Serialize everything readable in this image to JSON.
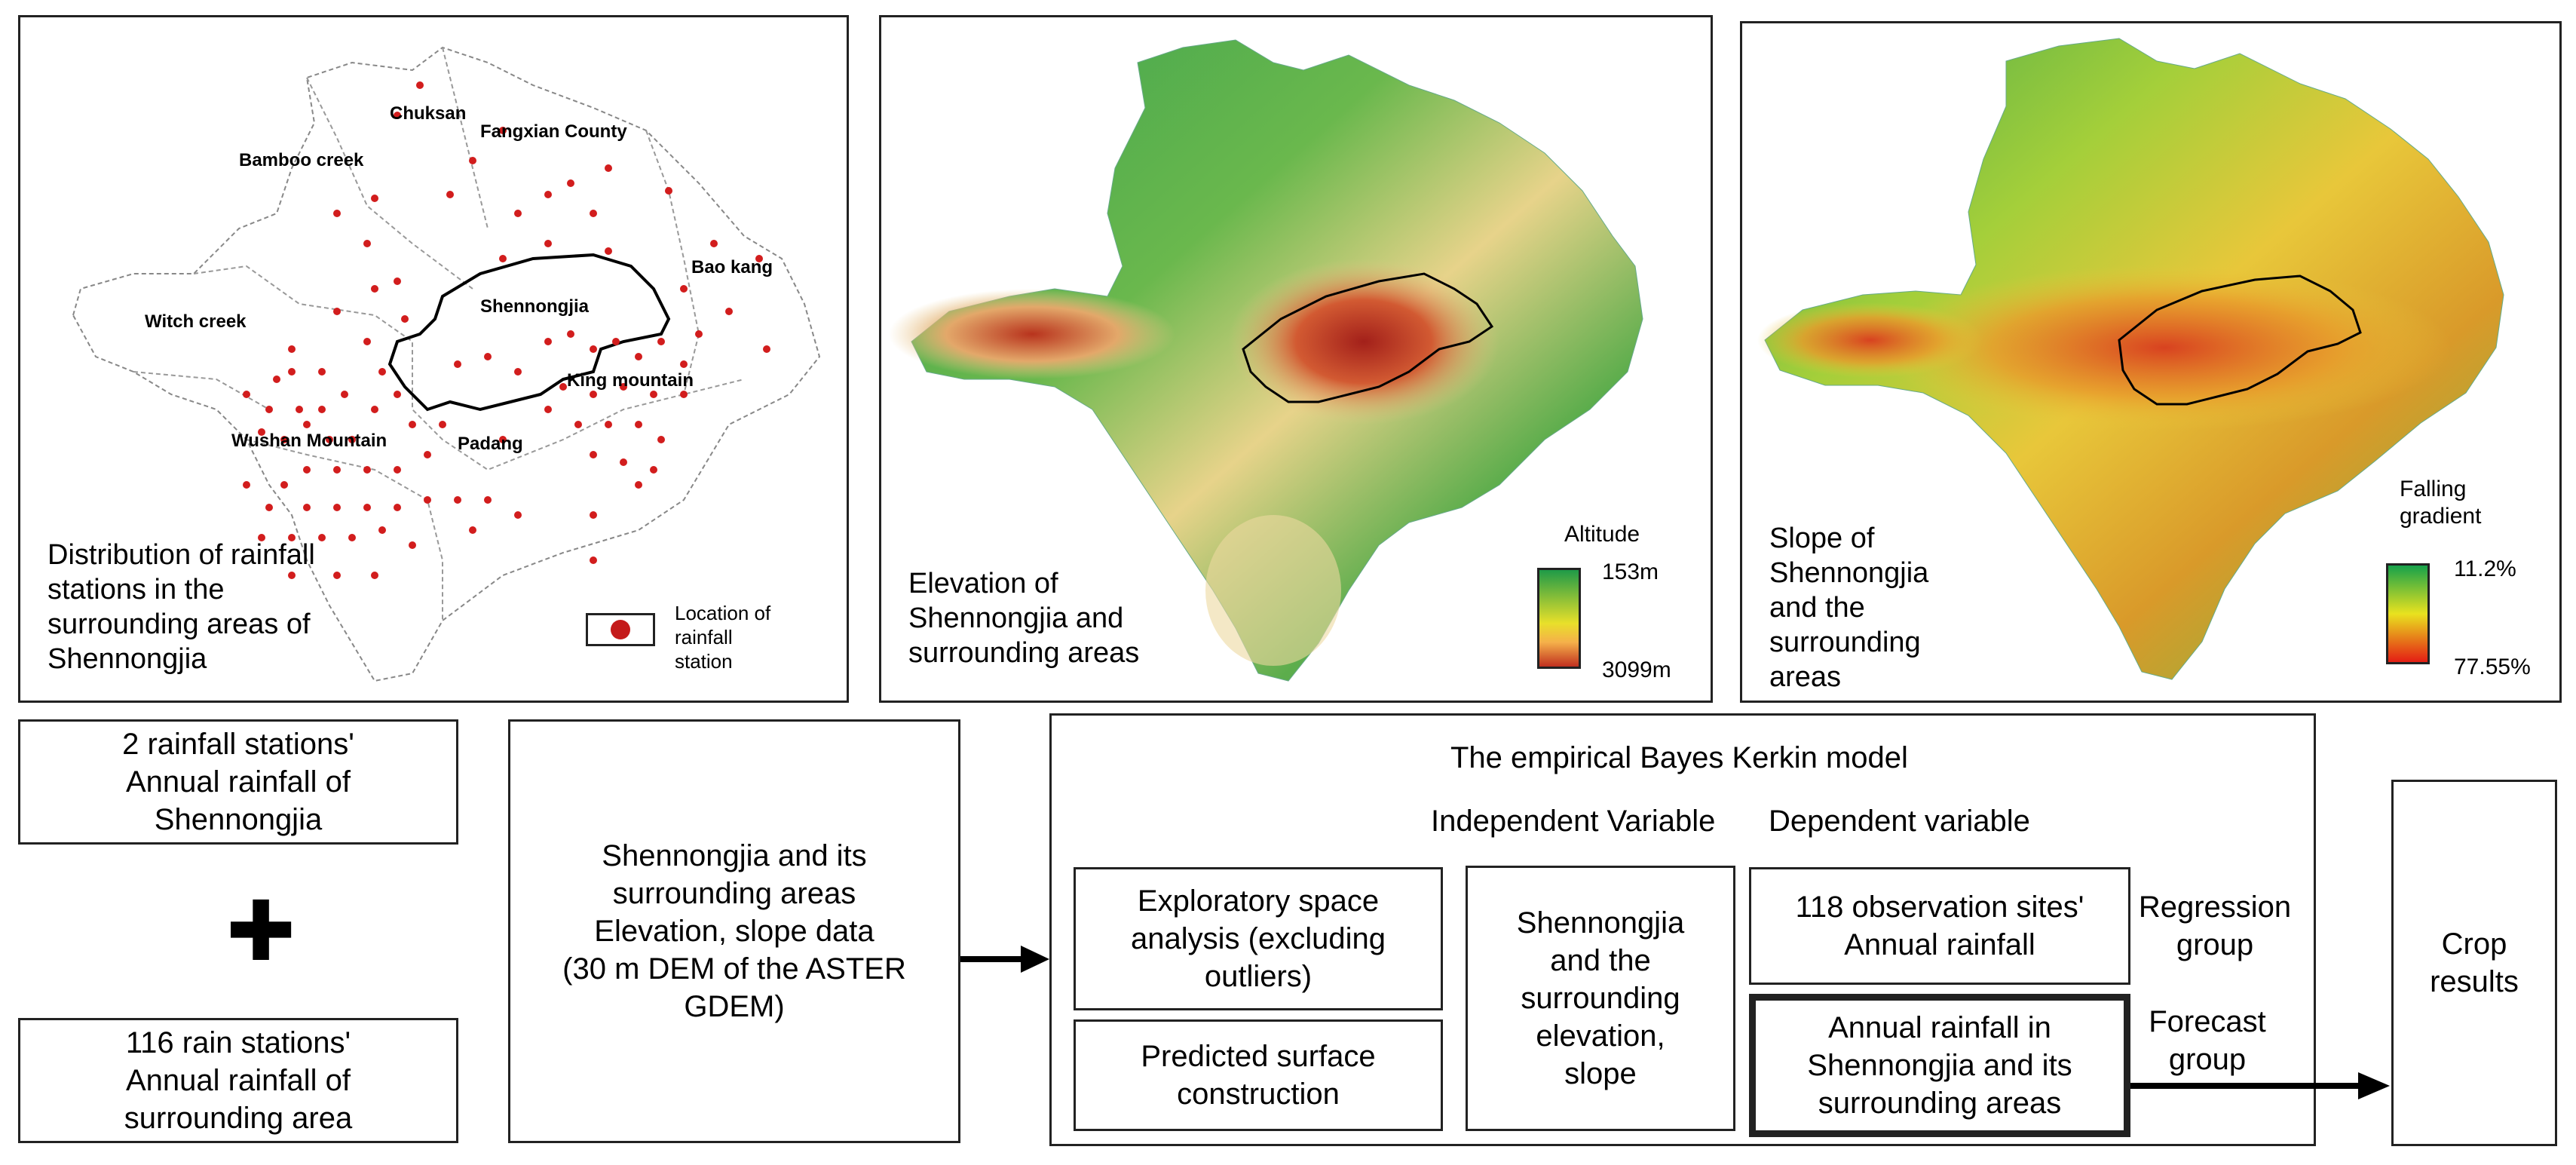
{
  "panels": {
    "stations": {
      "caption": "Distribution of rainfall\nstations in the\nsurrounding areas of\nShennongjia",
      "legend_label": "Location of\nrainfall\nstation",
      "station_color": "#d21d1d",
      "labels": {
        "chuksan": "Chuksan",
        "fangxian": "Fangxian County",
        "bamboo": "Bamboo creek",
        "baokang": "Bao kang",
        "witch": "Witch creek",
        "shennongjia": "Shennongjia",
        "king": "King mountain",
        "wushan": "Wushan Mountain",
        "padang": "Padang"
      }
    },
    "elevation": {
      "caption": "Elevation of\nShennongjia and\nsurrounding areas",
      "legend_title": "Altitude",
      "legend_max": "153m",
      "legend_min": "3099m",
      "colors": [
        "#1f9a48",
        "#e8e02a",
        "#f5b04a",
        "#c0301f"
      ]
    },
    "slope": {
      "caption": "Slope of\nShennongjia\nand the\nsurrounding\nareas",
      "legend_title": "Falling\ngradient",
      "legend_max": "11.2%",
      "legend_min": "77.55%",
      "colors": [
        "#16a14a",
        "#e9e21f",
        "#e41d14"
      ]
    }
  },
  "flow": {
    "box_stations2": "2 rainfall stations'\nAnnual rainfall of\nShennongjia",
    "plus_symbol": "✚",
    "box_stations116": "116 rain stations'\nAnnual rainfall of\nsurrounding area",
    "box_dem": "Shennongjia and its\nsurrounding areas\nElevation, slope data\n(30 m DEM of the ASTER\nGDEM)",
    "model_title": "The empirical Bayes Kerkin model",
    "independent_label": "Independent Variable",
    "dependent_label": "Dependent variable",
    "box_exploratory": "Exploratory space\nanalysis (excluding\noutliers)",
    "box_predicted": "Predicted surface\nconstruction",
    "box_elev_slope": "Shennongjia\nand the\nsurrounding\nelevation,\nslope",
    "box_obs_sites": "118 observation sites'\nAnnual rainfall",
    "box_annual_rainfall": "Annual rainfall in\nShennongjia and its\nsurrounding areas",
    "regression_label": "Regression\ngroup",
    "forecast_label": "Forecast\ngroup",
    "box_crop": "Crop\nresults"
  }
}
